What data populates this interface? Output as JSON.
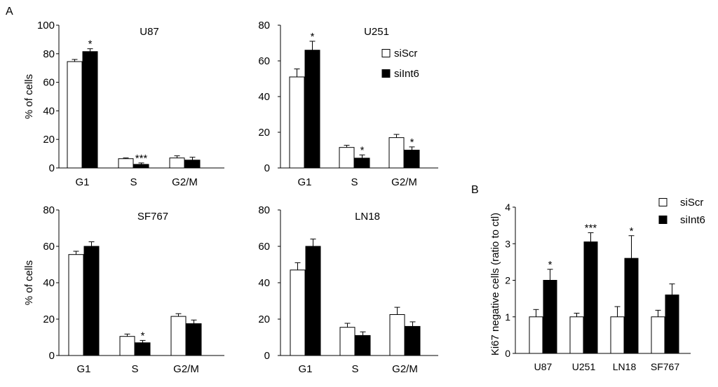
{
  "panel_letters": {
    "a": "A",
    "b": "B"
  },
  "colors": {
    "siScr": "#ffffff",
    "siInt6": "#000000",
    "stroke": "#000000"
  },
  "chart_data": [
    {
      "type": "bar",
      "panel": "A",
      "title": "U87",
      "categories": [
        "G1",
        "S",
        "G2/M"
      ],
      "ylabel": "% of cells",
      "ylim": [
        0,
        100
      ],
      "yticks": [
        "0",
        "20",
        "40",
        "60",
        "80",
        "100"
      ],
      "series": [
        {
          "values": [
            74.5,
            6.5,
            7
          ],
          "errors": [
            1.5,
            0.5,
            1.5
          ]
        },
        {
          "values": [
            81.5,
            2.5,
            5.5
          ],
          "errors": [
            2,
            1,
            2
          ]
        }
      ],
      "annotations": [
        {
          "category": 0,
          "series": 1,
          "text": "*"
        },
        {
          "category": 1,
          "series": 1,
          "text": "***"
        }
      ],
      "legend": "none"
    },
    {
      "type": "bar",
      "panel": "A",
      "title": "U251",
      "categories": [
        "G1",
        "S",
        "G2/M"
      ],
      "ylabel": "",
      "ylim": [
        0,
        80
      ],
      "yticks": [
        "0",
        "20",
        "40",
        "60",
        "80"
      ],
      "series": [
        {
          "name": "siScr",
          "values": [
            51,
            11.5,
            17
          ],
          "errors": [
            4.5,
            1.2,
            1.8
          ]
        },
        {
          "name": "siInt6",
          "values": [
            66,
            5.5,
            10
          ],
          "errors": [
            5,
            1.8,
            1.8
          ]
        }
      ],
      "annotations": [
        {
          "category": 0,
          "series": 1,
          "text": "*"
        },
        {
          "category": 1,
          "series": 1,
          "text": "*"
        },
        {
          "category": 2,
          "series": 1,
          "text": "*"
        }
      ],
      "legend": "right"
    },
    {
      "type": "bar",
      "panel": "A",
      "title": "SF767",
      "categories": [
        "G1",
        "S",
        "G2/M"
      ],
      "ylabel": "% of cells",
      "ylim": [
        0,
        80
      ],
      "yticks": [
        "0",
        "20",
        "40",
        "60",
        "80"
      ],
      "series": [
        {
          "values": [
            55.5,
            10.5,
            21.5
          ],
          "errors": [
            1.8,
            1.3,
            1.5
          ]
        },
        {
          "values": [
            60,
            7,
            17.5
          ],
          "errors": [
            2.5,
            1.3,
            2
          ]
        }
      ],
      "annotations": [
        {
          "category": 1,
          "series": 1,
          "text": "*"
        }
      ],
      "legend": "none"
    },
    {
      "type": "bar",
      "panel": "A",
      "title": "LN18",
      "categories": [
        "G1",
        "S",
        "G2/M"
      ],
      "ylabel": "",
      "ylim": [
        0,
        80
      ],
      "yticks": [
        "0",
        "20",
        "40",
        "60",
        "80"
      ],
      "series": [
        {
          "values": [
            47,
            15.5,
            22.5
          ],
          "errors": [
            4,
            2.2,
            4
          ]
        },
        {
          "values": [
            60,
            11,
            16
          ],
          "errors": [
            4,
            2,
            2.5
          ]
        }
      ],
      "annotations": [],
      "legend": "none"
    },
    {
      "type": "bar",
      "panel": "B",
      "title": "",
      "categories": [
        "U87",
        "U251",
        "LN18",
        "SF767"
      ],
      "ylabel": "Ki67 negative cells (ratio to ctl)",
      "ylim": [
        0,
        4
      ],
      "yticks": [
        "0",
        "1",
        "2",
        "3",
        "4"
      ],
      "series": [
        {
          "name": "siScr",
          "values": [
            1,
            1,
            1,
            1
          ],
          "errors": [
            0.2,
            0.1,
            0.28,
            0.18
          ]
        },
        {
          "name": "siInt6",
          "values": [
            2,
            3.05,
            2.6,
            1.6
          ],
          "errors": [
            0.3,
            0.25,
            0.62,
            0.3
          ]
        }
      ],
      "annotations": [
        {
          "category": 0,
          "series": 1,
          "text": "*"
        },
        {
          "category": 1,
          "series": 1,
          "text": "***"
        },
        {
          "category": 2,
          "series": 1,
          "text": "*"
        }
      ],
      "legend": "top-right"
    }
  ]
}
